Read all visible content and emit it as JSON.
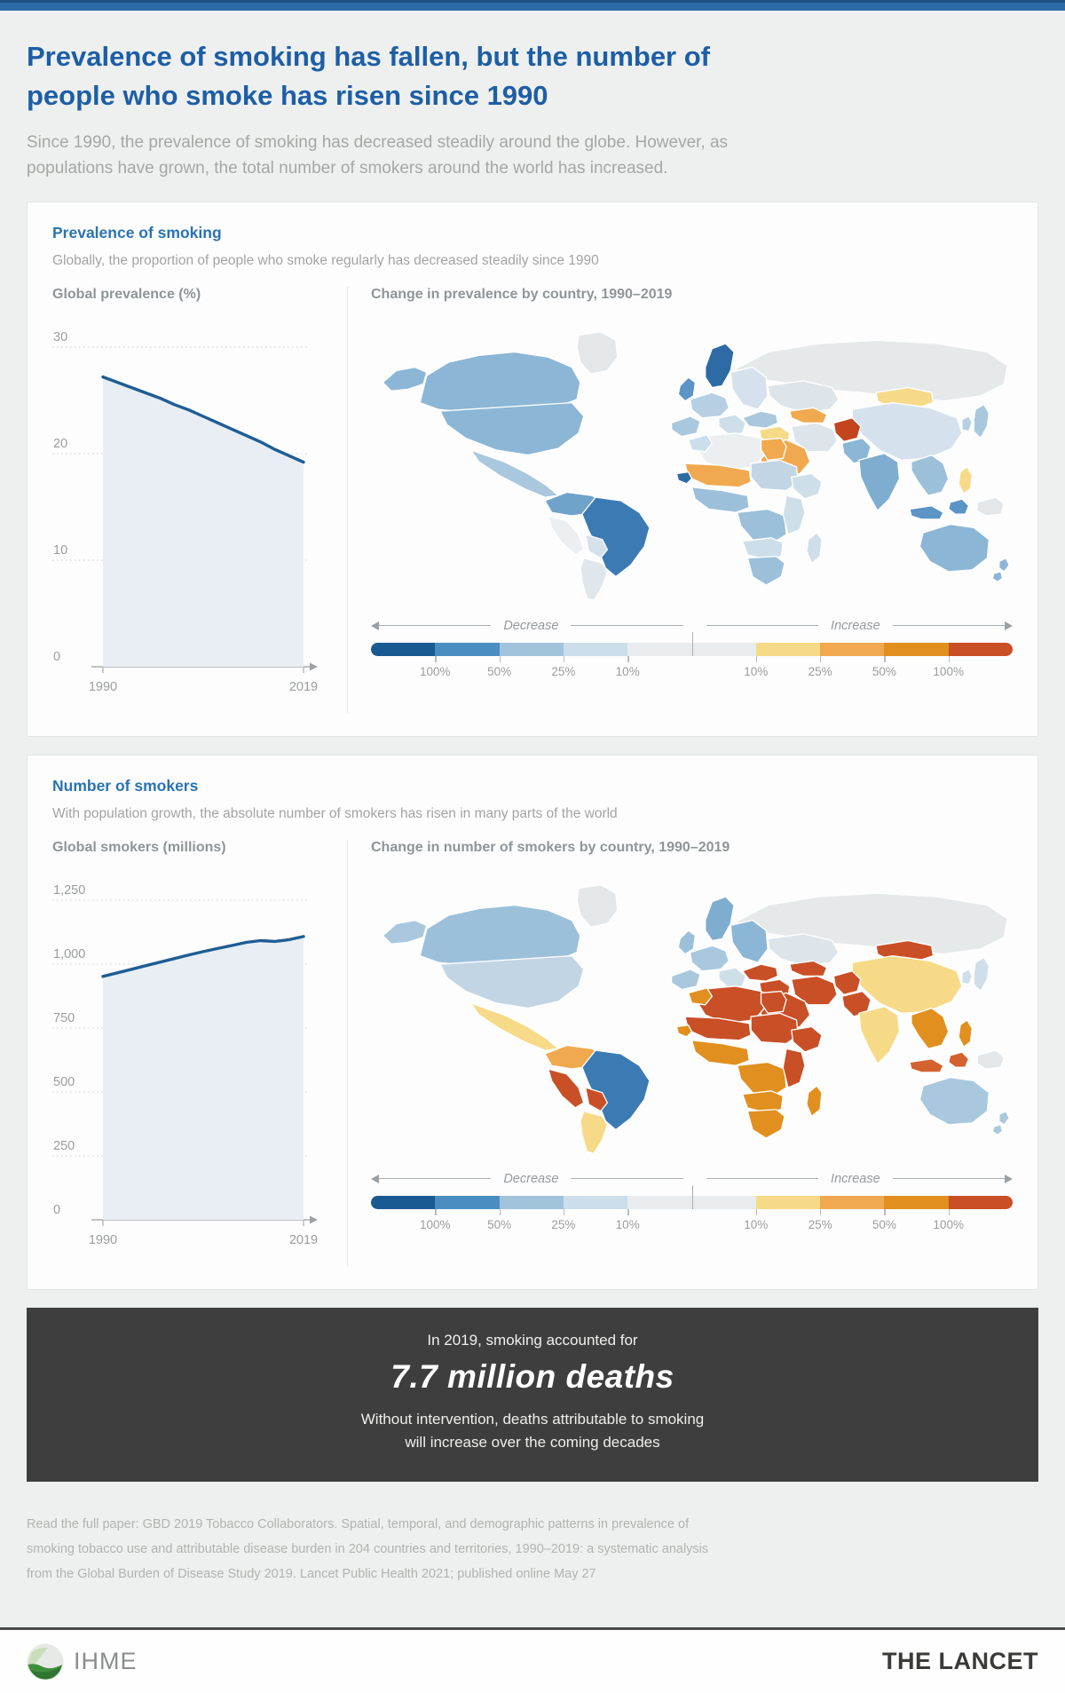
{
  "colors": {
    "topbar": "#2b6ba8",
    "page_bg": "#eef0ef",
    "card_bg": "#fdfdfe",
    "title_blue": "#1d5ea6",
    "panel_heading_blue": "#2a73b1",
    "muted_gray": "#a3a4a2",
    "line_blue": "#1e5d94",
    "area_fill": "#e8eef4",
    "callout_bg": "#3e3e3e",
    "citation_gray": "#b2b3b1",
    "lancet_text": "#3a3a38"
  },
  "header": {
    "title": "Prevalence of smoking has fallen, but the number of people who smoke has risen since 1990",
    "subtitle": "Since 1990, the prevalence of smoking has decreased steadily around the globe. However, as populations have grown, the total number of smokers around the world has increased."
  },
  "panel_prevalence": {
    "heading": "Prevalence of smoking",
    "subheading": "Globally, the proportion of people who smoke regularly has decreased steadily since 1990"
  },
  "panel_smokers": {
    "heading": "Number of smokers",
    "subheading": "With population growth, the absolute number of smokers has risen in many parts of the world"
  },
  "legend": {
    "decrease": "Decrease",
    "increase": "Increase",
    "labels": [
      "100%",
      "50%",
      "25%",
      "10%",
      "10%",
      "25%",
      "50%",
      "100%"
    ],
    "segments": [
      "#1a5a92",
      "#4a8ec1",
      "#a2c4da",
      "#cddeeb",
      "#e8ecef",
      "#e8ecef",
      "#f7da88",
      "#f0a94f",
      "#e1901f",
      "#c94f26"
    ]
  },
  "callout": {
    "line1": "In 2019, smoking accounted for",
    "big": "7.7 million deaths",
    "line2": "Without intervention, deaths attributable to smoking",
    "line3": "will increase over the coming decades"
  },
  "citation": {
    "text": "Read the full paper: GBD 2019 Tobacco Collaborators. Spatial, temporal, and demographic patterns in prevalence of smoking tobacco use and attributable disease burden in 204 countries and territories, 1990–2019: a systematic analysis from the Global Burden of Disease Study 2019. Lancet Public Health 2021; published online May 27"
  },
  "footer": {
    "ihme": "IHME",
    "lancet": "THE LANCET"
  },
  "chart_data": [
    {
      "type": "area",
      "title": "Global prevalence (%)",
      "xlabel": "",
      "ylabel": "Global prevalence (%)",
      "ylim": [
        0,
        30
      ],
      "y_ticks": [
        0,
        10,
        20,
        30
      ],
      "y_tick_labels": [
        "0",
        "10",
        "20",
        "30"
      ],
      "x_tick_labels": [
        "1990",
        "2019"
      ],
      "grid": "dotted-horizontal",
      "series": [
        {
          "name": "Global smoking prevalence (%)",
          "x": [
            1990,
            1992,
            1994,
            1996,
            1998,
            2000,
            2002,
            2004,
            2006,
            2008,
            2010,
            2012,
            2014,
            2016,
            2019
          ],
          "values": [
            27.2,
            26.7,
            26.2,
            25.7,
            25.2,
            24.6,
            24.1,
            23.5,
            22.9,
            22.3,
            21.7,
            21.1,
            20.4,
            19.8,
            19.2
          ]
        }
      ]
    },
    {
      "type": "area",
      "title": "Global smokers (millions)",
      "xlabel": "",
      "ylabel": "Global smokers (millions)",
      "ylim": [
        0,
        1250
      ],
      "y_ticks": [
        0,
        250,
        500,
        750,
        1000,
        1250
      ],
      "y_tick_labels": [
        "0",
        "250",
        "500",
        "750",
        "1,000",
        "1,250"
      ],
      "x_tick_labels": [
        "1990",
        "2019"
      ],
      "grid": "dotted-horizontal",
      "series": [
        {
          "name": "Global number of smokers (millions)",
          "x": [
            1990,
            1992,
            1994,
            1996,
            1998,
            2000,
            2002,
            2004,
            2006,
            2008,
            2010,
            2012,
            2014,
            2016,
            2019
          ],
          "values": [
            952,
            966,
            980,
            994,
            1008,
            1022,
            1036,
            1049,
            1061,
            1073,
            1085,
            1092,
            1089,
            1096,
            1108
          ]
        }
      ]
    },
    {
      "type": "choropleth",
      "title": "Change in prevalence by country, 1990–2019",
      "legend": {
        "decrease_labels": [
          "100%",
          "50%",
          "25%",
          "10%"
        ],
        "increase_labels": [
          "10%",
          "25%",
          "50%",
          "100%"
        ],
        "direction_words": [
          "Decrease",
          "Increase"
        ]
      },
      "regions": {
        "greenland": "#e3e7ea",
        "alaska": "#8cb6d5",
        "canada": "#8cb6d5",
        "usa": "#8cb6d5",
        "mexico": "#a9c8de",
        "colombia-venezuela": "#6fa3ca",
        "peru": "#eceff1",
        "brazil": "#3c7ab4",
        "bolivia": "#d5e2ed",
        "argentina": "#e0e7ec",
        "scandinavia": "#2e6ba5",
        "uk": "#5b94c5",
        "iberia": "#a9c8de",
        "france-germany": "#b7cfe2",
        "italy-balkans": "#cfdfe9",
        "east-europe": "#d5e2ed",
        "russia": "#e6e9ea",
        "kazakhstan": "#dde5ea",
        "uzbek-turkmen": "#f0a94f",
        "mongolia": "#f7da88",
        "china": "#d5e2ed",
        "japan": "#a9c8de",
        "korea": "#b7cfe2",
        "turkey": "#a9c8de",
        "iraq-syria": "#f7da88",
        "iran": "#dde5ea",
        "afghanistan": "#c2451d",
        "pakistan": "#8cb6d5",
        "saudi": "#f0a94f",
        "india": "#7fadd0",
        "morocco": "#cddeeb",
        "algeria-libya": "#eceff1",
        "egypt": "#f0a94f",
        "mauritania-mali-niger": "#f0a94f",
        "senegal": "#2e6ba5",
        "chad-sudan": "#c2d5e4",
        "west-africa": "#9cc0da",
        "ethiopia": "#cfdfe9",
        "central-africa": "#9cc0da",
        "east-africa": "#cfdfe9",
        "angola-zambia": "#cddeeb",
        "southern-africa": "#9cc0da",
        "madagascar": "#cfdfe9",
        "se-asia": "#9cc0da",
        "philippines": "#f7da88",
        "indonesia": "#5b94c5",
        "png": "#e3e7ea",
        "australia": "#8cb6d5",
        "new-zealand": "#8cb6d5"
      }
    },
    {
      "type": "choropleth",
      "title": "Change in number of smokers by country, 1990–2019",
      "legend": {
        "decrease_labels": [
          "100%",
          "50%",
          "25%",
          "10%"
        ],
        "increase_labels": [
          "10%",
          "25%",
          "50%",
          "100%"
        ],
        "direction_words": [
          "Decrease",
          "Increase"
        ]
      },
      "regions": {
        "greenland": "#e3e7ea",
        "alaska": "#a9c8de",
        "canada": "#9cc0da",
        "usa": "#c2d5e4",
        "mexico": "#f7da88",
        "colombia-venezuela": "#f0a94f",
        "peru": "#c94f26",
        "brazil": "#3c7ab4",
        "bolivia": "#c94f26",
        "argentina": "#f7da88",
        "scandinavia": "#7fadd0",
        "uk": "#9cc0da",
        "iberia": "#a9c8de",
        "france-germany": "#a9c8de",
        "italy-balkans": "#cfdfe9",
        "east-europe": "#8cb6d5",
        "russia": "#e6e9ea",
        "kazakhstan": "#dde5ea",
        "uzbek-turkmen": "#c94f26",
        "mongolia": "#c94f26",
        "china": "#f7da88",
        "japan": "#cfdfe9",
        "korea": "#cfdfe9",
        "turkey": "#c94f26",
        "iraq-syria": "#c94f26",
        "iran": "#c94f26",
        "afghanistan": "#c94f26",
        "pakistan": "#c94f26",
        "saudi": "#c94f26",
        "india": "#f7da88",
        "morocco": "#e1901f",
        "algeria-libya": "#c94f26",
        "egypt": "#c94f26",
        "mauritania-mali-niger": "#c94f26",
        "senegal": "#e1901f",
        "chad-sudan": "#c94f26",
        "west-africa": "#e1901f",
        "ethiopia": "#c94f26",
        "central-africa": "#e1901f",
        "east-africa": "#c94f26",
        "angola-zambia": "#e1901f",
        "southern-africa": "#e1901f",
        "madagascar": "#e1901f",
        "se-asia": "#e1901f",
        "philippines": "#e1901f",
        "indonesia": "#d3622e",
        "png": "#e3e7ea",
        "australia": "#a9c8de",
        "new-zealand": "#a9c8de"
      }
    }
  ]
}
